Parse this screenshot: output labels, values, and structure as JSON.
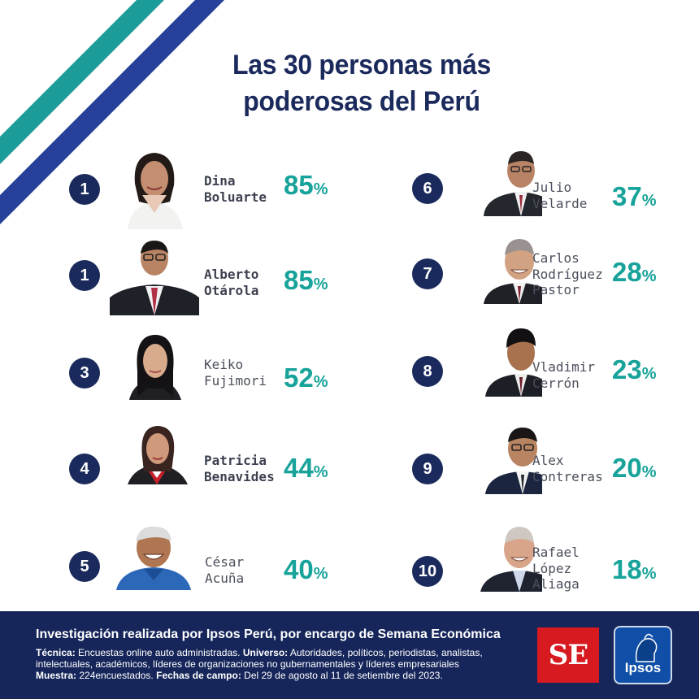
{
  "title": {
    "line1": "Las 30 personas más",
    "line2": "poderosas del Perú"
  },
  "colors": {
    "navy": "#1b2a5c",
    "teal": "#17a39a",
    "stripe_teal": "#1c9c98",
    "stripe_blue": "#27419b",
    "se_red": "#d71920",
    "ipsos_blue": "#0f4fa8"
  },
  "left": [
    {
      "rank": "1",
      "first": "Dina",
      "last": "Boluarte",
      "pct": "85",
      "unit": "%",
      "photo": "portrait-woman-dark-hair-white-blazer"
    },
    {
      "rank": "1",
      "first": "Alberto",
      "last": "Otárola",
      "pct": "85",
      "unit": "%",
      "photo": "portrait-man-glasses-dark-suit"
    },
    {
      "rank": "3",
      "first": "Keiko",
      "last": "Fujimori",
      "pct": "52",
      "unit": "%",
      "photo": "portrait-woman-long-dark-hair"
    },
    {
      "rank": "4",
      "first": "Patricia",
      "last": "Benavides",
      "pct": "44",
      "unit": "%",
      "photo": "portrait-woman-red-white-sash"
    },
    {
      "rank": "5",
      "first": "César",
      "last": "Acuña",
      "pct": "40",
      "unit": "%",
      "photo": "portrait-man-smiling-blue-shirt"
    }
  ],
  "right": [
    {
      "rank": "6",
      "lines": [
        "Julio",
        "Velarde"
      ],
      "pct": "37",
      "unit": "%",
      "photo": "portrait-man-glasses-suit"
    },
    {
      "rank": "7",
      "lines": [
        "Carlos",
        "Rodríguez",
        "Pastor"
      ],
      "pct": "28",
      "unit": "%",
      "photo": "portrait-man-grey-hair-suit"
    },
    {
      "rank": "8",
      "lines": [
        "Vladimir",
        "Cerrón"
      ],
      "pct": "23",
      "unit": "%",
      "photo": "portrait-man-dark-suit"
    },
    {
      "rank": "9",
      "lines": [
        "Alex",
        "Contreras"
      ],
      "pct": "20",
      "unit": "%",
      "photo": "portrait-man-glasses-navy-suit"
    },
    {
      "rank": "10",
      "lines": [
        "Rafael",
        "López",
        "Aliaga"
      ],
      "pct": "18",
      "unit": "%",
      "photo": "portrait-man-smiling-suit"
    }
  ],
  "footer": {
    "headline": "Investigación realizada por Ipsos Perú, por encargo de Semana Económica",
    "tecnica_label": "Técnica:",
    "tecnica_text": "Encuestas online auto administradas.",
    "universo_label": "Universo:",
    "universo_text": "Autoridades, políticos, periodistas, analistas, intelectuales, académicos, líderes de organizaciones no gubernamentales y líderes empresariales",
    "muestra_label": "Muestra:",
    "muestra_text": "224encuestados.",
    "fechas_label": "Fechas de campo:",
    "fechas_text": "Del 29 de agosto al 11 de setiembre del 2023.",
    "se_logo": "SE",
    "ipsos_logo": "Ipsos"
  }
}
